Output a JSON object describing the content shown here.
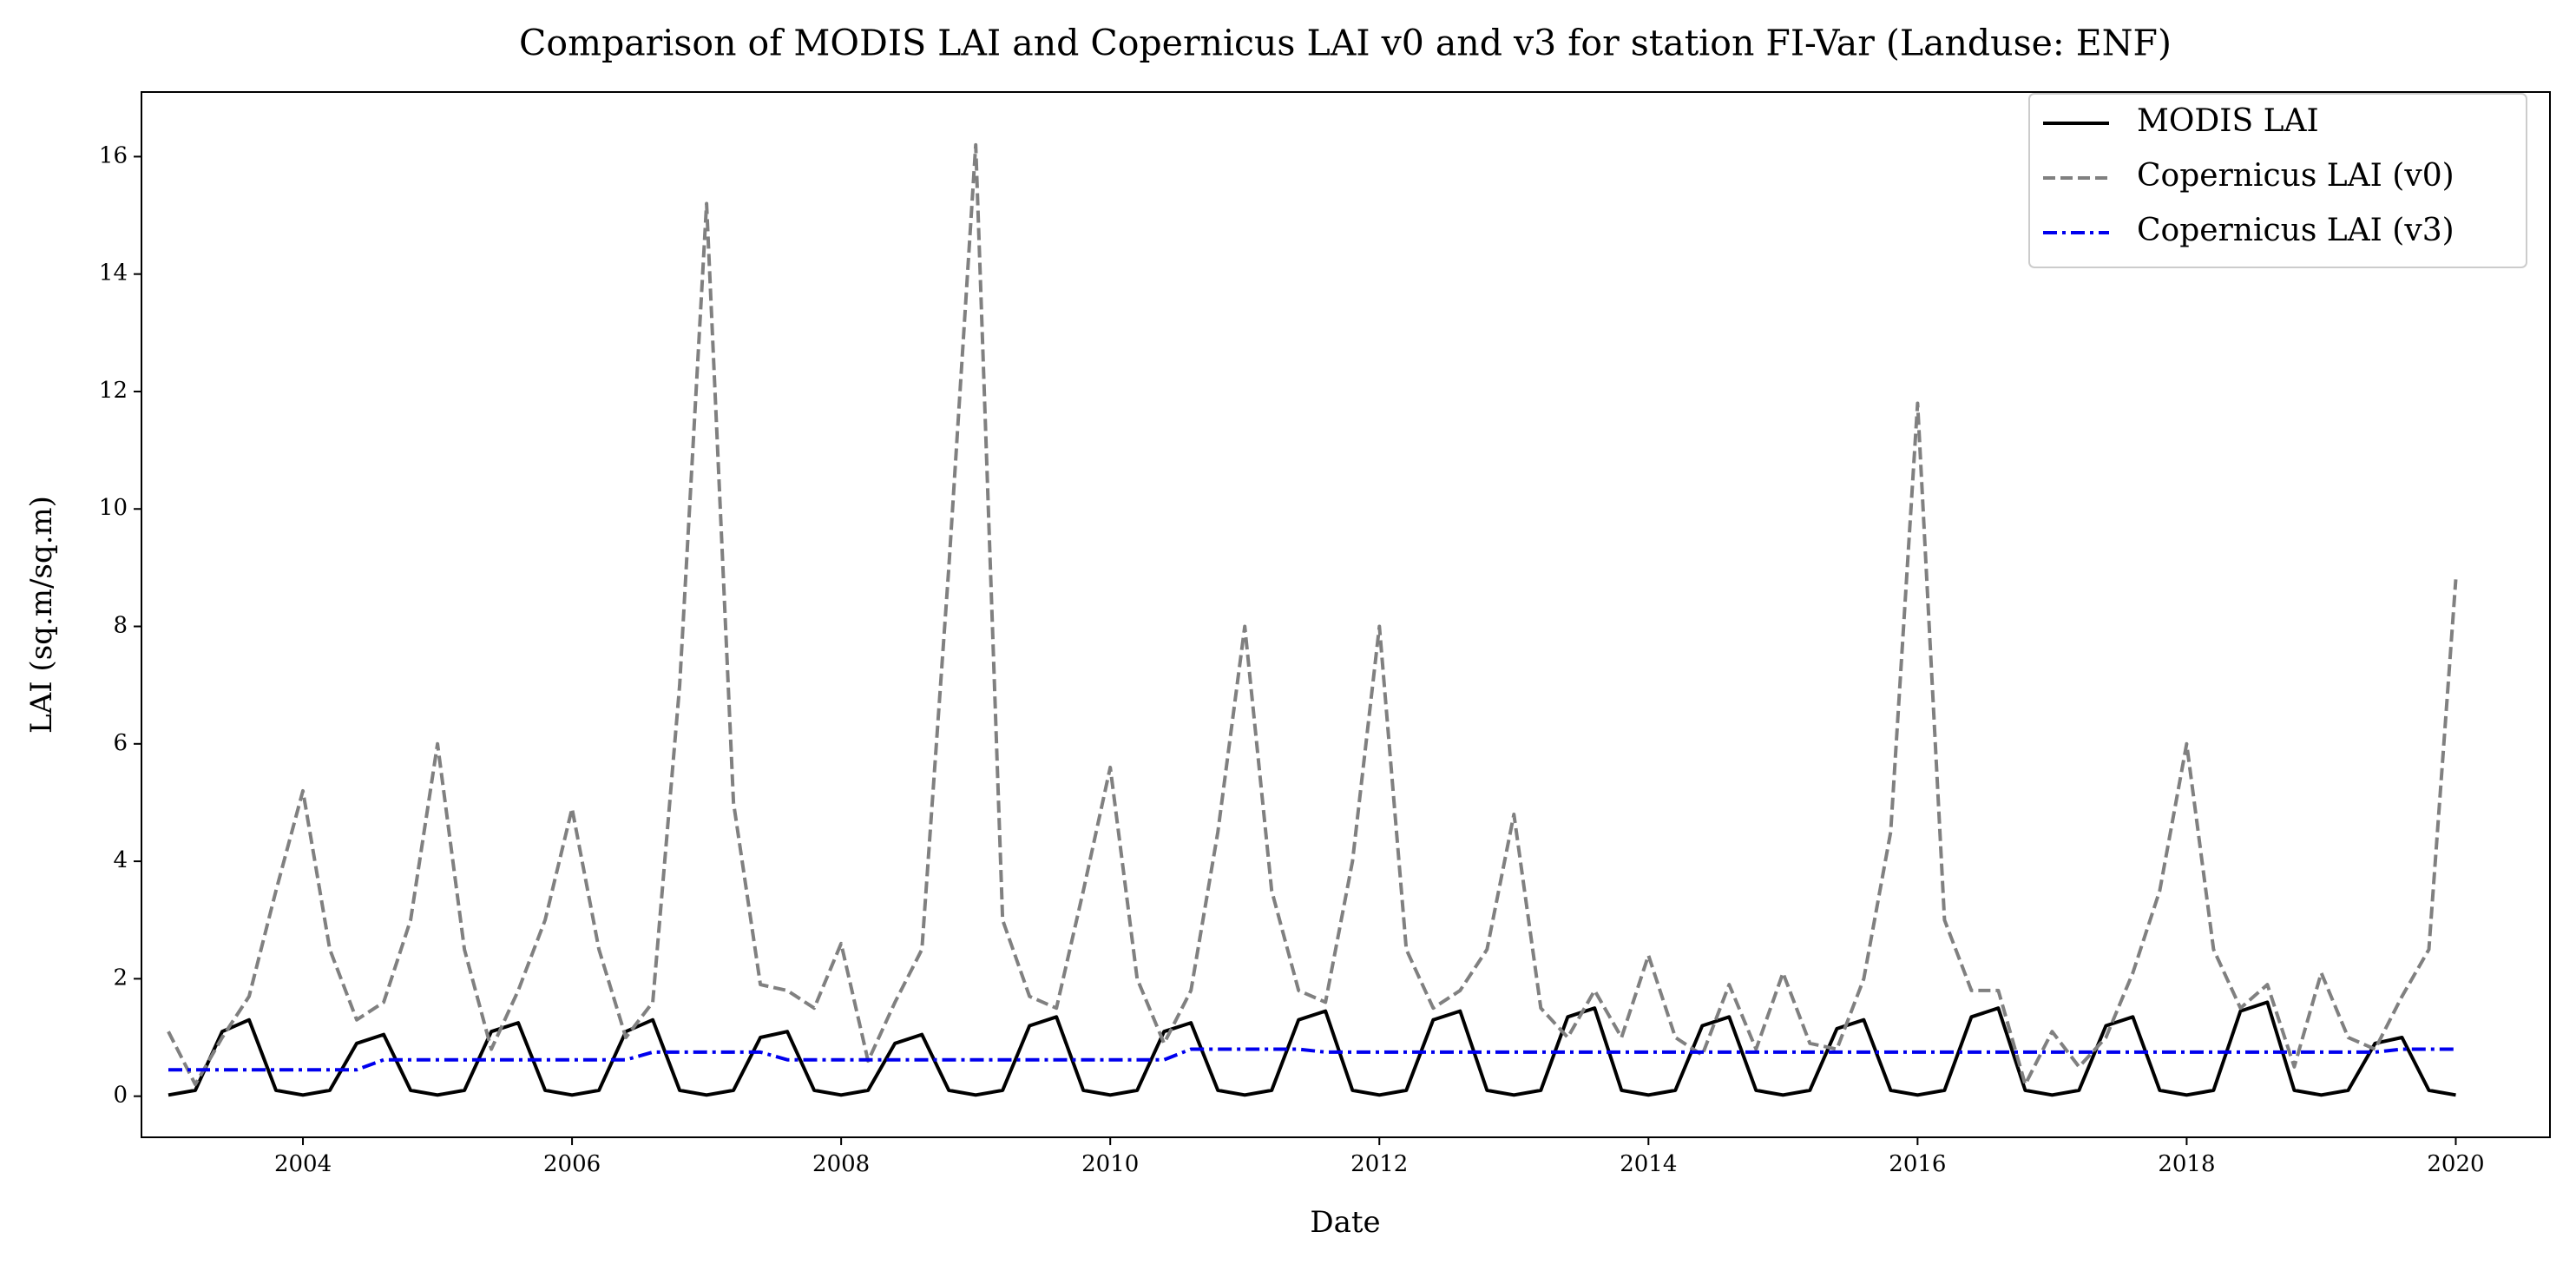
{
  "chart_data": {
    "type": "line",
    "title": "Comparison of MODIS LAI and Copernicus LAI v0 and v3 for station FI-Var (Landuse: ENF)",
    "x_label": "Date",
    "y_label": "LAI (sq.m/sq.m)",
    "xlim": [
      2002.8,
      2020.7
    ],
    "xticks": [
      2004,
      2006,
      2008,
      2010,
      2012,
      2014,
      2016,
      2018,
      2020
    ],
    "ylim": [
      -0.7,
      17.1
    ],
    "yticks": [
      0,
      2,
      4,
      6,
      8,
      10,
      12,
      14,
      16
    ],
    "legend": "upper right",
    "x": [
      2003.0,
      2003.2,
      2003.4,
      2003.6,
      2003.8,
      2004.0,
      2004.2,
      2004.4,
      2004.6,
      2004.8,
      2005.0,
      2005.2,
      2005.4,
      2005.6,
      2005.8,
      2006.0,
      2006.2,
      2006.4,
      2006.6,
      2006.8,
      2007.0,
      2007.2,
      2007.4,
      2007.6,
      2007.8,
      2008.0,
      2008.2,
      2008.4,
      2008.6,
      2008.8,
      2009.0,
      2009.2,
      2009.4,
      2009.6,
      2009.8,
      2010.0,
      2010.2,
      2010.4,
      2010.6,
      2010.8,
      2011.0,
      2011.2,
      2011.4,
      2011.6,
      2011.8,
      2012.0,
      2012.2,
      2012.4,
      2012.6,
      2012.8,
      2013.0,
      2013.2,
      2013.4,
      2013.6,
      2013.8,
      2014.0,
      2014.2,
      2014.4,
      2014.6,
      2014.8,
      2015.0,
      2015.2,
      2015.4,
      2015.6,
      2015.8,
      2016.0,
      2016.2,
      2016.4,
      2016.6,
      2016.8,
      2017.0,
      2017.2,
      2017.4,
      2017.6,
      2017.8,
      2018.0,
      2018.2,
      2018.4,
      2018.6,
      2018.8,
      2019.0,
      2019.2,
      2019.4,
      2019.6,
      2019.8,
      2020.0
    ],
    "series": [
      {
        "name": "MODIS LAI",
        "color": "#000000",
        "dash": "solid",
        "values": [
          0.02,
          0.1,
          1.1,
          1.3,
          0.1,
          0.02,
          0.1,
          0.9,
          1.05,
          0.1,
          0.02,
          0.1,
          1.1,
          1.25,
          0.1,
          0.02,
          0.1,
          1.1,
          1.3,
          0.1,
          0.02,
          0.1,
          1.0,
          1.1,
          0.1,
          0.02,
          0.1,
          0.9,
          1.05,
          0.1,
          0.02,
          0.1,
          1.2,
          1.35,
          0.1,
          0.02,
          0.1,
          1.1,
          1.25,
          0.1,
          0.02,
          0.1,
          1.3,
          1.45,
          0.1,
          0.02,
          0.1,
          1.3,
          1.45,
          0.1,
          0.02,
          0.1,
          1.35,
          1.5,
          0.1,
          0.02,
          0.1,
          1.2,
          1.35,
          0.1,
          0.02,
          0.1,
          1.15,
          1.3,
          0.1,
          0.02,
          0.1,
          1.35,
          1.5,
          0.1,
          0.02,
          0.1,
          1.2,
          1.35,
          0.1,
          0.02,
          0.1,
          1.45,
          1.6,
          0.1,
          0.02,
          0.1,
          0.9,
          1.0,
          0.1,
          0.02
        ]
      },
      {
        "name": "Copernicus LAI (v0)",
        "color": "#808080",
        "dash": "dashed",
        "values": [
          1.1,
          0.2,
          1.0,
          1.7,
          3.5,
          5.2,
          2.5,
          1.3,
          1.6,
          3.0,
          6.0,
          2.5,
          0.8,
          1.8,
          3.0,
          4.9,
          2.5,
          1.0,
          1.6,
          7.0,
          15.2,
          5.0,
          1.9,
          1.8,
          1.5,
          2.6,
          0.6,
          1.6,
          2.5,
          9.0,
          16.2,
          3.0,
          1.7,
          1.5,
          3.5,
          5.6,
          2.0,
          0.9,
          1.8,
          4.5,
          8.0,
          3.5,
          1.8,
          1.6,
          4.0,
          8.0,
          2.5,
          1.5,
          1.8,
          2.5,
          4.8,
          1.5,
          1.0,
          1.8,
          1.0,
          2.4,
          1.0,
          0.7,
          1.9,
          0.8,
          2.1,
          0.9,
          0.8,
          2.0,
          4.5,
          11.8,
          3.0,
          1.8,
          1.8,
          0.2,
          1.1,
          0.5,
          1.0,
          2.1,
          3.5,
          6.0,
          2.5,
          1.5,
          1.9,
          0.5,
          2.1,
          1.0,
          0.8,
          1.7,
          2.5,
          8.8
        ]
      },
      {
        "name": "Copernicus LAI (v3)",
        "color": "#0000ee",
        "dash": "dashdot",
        "values": [
          0.45,
          0.45,
          0.45,
          0.45,
          0.45,
          0.45,
          0.45,
          0.45,
          0.62,
          0.62,
          0.62,
          0.62,
          0.62,
          0.62,
          0.62,
          0.62,
          0.62,
          0.62,
          0.75,
          0.75,
          0.75,
          0.75,
          0.75,
          0.62,
          0.62,
          0.62,
          0.62,
          0.62,
          0.62,
          0.62,
          0.62,
          0.62,
          0.62,
          0.62,
          0.62,
          0.62,
          0.62,
          0.62,
          0.8,
          0.8,
          0.8,
          0.8,
          0.8,
          0.75,
          0.75,
          0.75,
          0.75,
          0.75,
          0.75,
          0.75,
          0.75,
          0.75,
          0.75,
          0.75,
          0.75,
          0.75,
          0.75,
          0.75,
          0.75,
          0.75,
          0.75,
          0.75,
          0.75,
          0.75,
          0.75,
          0.75,
          0.75,
          0.75,
          0.75,
          0.75,
          0.75,
          0.75,
          0.75,
          0.75,
          0.75,
          0.75,
          0.75,
          0.75,
          0.75,
          0.75,
          0.75,
          0.75,
          0.75,
          0.8,
          0.8,
          0.8
        ]
      }
    ]
  }
}
